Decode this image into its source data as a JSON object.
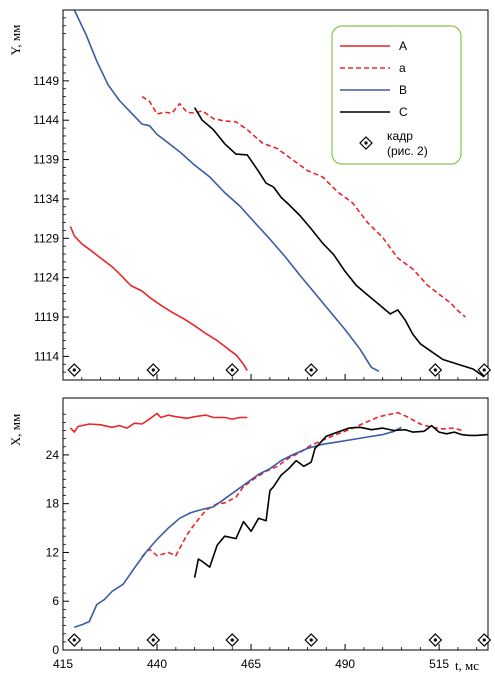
{
  "chart_data": [
    {
      "type": "line",
      "panel": "top",
      "ylabel": "Y, мм",
      "xlim": [
        415,
        528
      ],
      "ylim": [
        1111,
        1158
      ],
      "yticks": [
        1114,
        1119,
        1124,
        1129,
        1134,
        1139,
        1144,
        1149
      ],
      "legend_position": "top-right",
      "legend": [
        {
          "label": "A",
          "color": "#e8262b",
          "dash": "solid"
        },
        {
          "label": "a",
          "color": "#e8262b",
          "dash": "dashed"
        },
        {
          "label": "B",
          "color": "#3b5ba5",
          "dash": "solid"
        },
        {
          "label": "C",
          "color": "#000000",
          "dash": "solid"
        },
        {
          "label": "кадр\n(рис. 2)",
          "marker": "diamond-dot"
        }
      ],
      "series": [
        {
          "name": "A",
          "color": "#e8262b",
          "dash": "solid",
          "points": [
            [
              417,
              1130.5
            ],
            [
              418,
              1129.3
            ],
            [
              420,
              1128.3
            ],
            [
              422,
              1127.6
            ],
            [
              425,
              1126.5
            ],
            [
              428,
              1125.4
            ],
            [
              430,
              1124.5
            ],
            [
              433,
              1123.0
            ],
            [
              436,
              1122.3
            ],
            [
              438,
              1121.5
            ],
            [
              441,
              1120.5
            ],
            [
              444,
              1119.6
            ],
            [
              447,
              1118.8
            ],
            [
              450,
              1117.9
            ],
            [
              453,
              1116.9
            ],
            [
              456,
              1116.0
            ],
            [
              459,
              1114.9
            ],
            [
              461,
              1114.2
            ],
            [
              463,
              1113.0
            ],
            [
              464,
              1112.2
            ]
          ]
        },
        {
          "name": "a",
          "color": "#e8262b",
          "dash": "dashed",
          "points": [
            [
              436,
              1147.0
            ],
            [
              438,
              1146.4
            ],
            [
              440,
              1144.8
            ],
            [
              442,
              1145.0
            ],
            [
              444,
              1144.9
            ],
            [
              446,
              1146.1
            ],
            [
              448,
              1145.0
            ],
            [
              450,
              1144.9
            ],
            [
              452,
              1145.2
            ],
            [
              455,
              1144.2
            ],
            [
              458,
              1143.9
            ],
            [
              461,
              1143.8
            ],
            [
              464,
              1142.8
            ],
            [
              468,
              1141.1
            ],
            [
              472,
              1140.4
            ],
            [
              476,
              1139.0
            ],
            [
              480,
              1137.6
            ],
            [
              484,
              1136.8
            ],
            [
              488,
              1134.9
            ],
            [
              492,
              1133.5
            ],
            [
              496,
              1131.0
            ],
            [
              500,
              1129.1
            ],
            [
              504,
              1126.5
            ],
            [
              508,
              1125.1
            ],
            [
              512,
              1123.0
            ],
            [
              515,
              1121.9
            ],
            [
              518,
              1120.8
            ],
            [
              520,
              1119.8
            ],
            [
              522,
              1119.0
            ]
          ]
        },
        {
          "name": "B",
          "color": "#3b5ba5",
          "dash": "solid",
          "points": [
            [
              418,
              1158.0
            ],
            [
              421,
              1155.0
            ],
            [
              424,
              1151.5
            ],
            [
              427,
              1148.5
            ],
            [
              430,
              1146.5
            ],
            [
              433,
              1145.0
            ],
            [
              436,
              1143.5
            ],
            [
              438,
              1143.3
            ],
            [
              440,
              1142.2
            ],
            [
              443,
              1141.1
            ],
            [
              446,
              1140.0
            ],
            [
              450,
              1138.3
            ],
            [
              454,
              1136.8
            ],
            [
              458,
              1134.8
            ],
            [
              462,
              1133.1
            ],
            [
              466,
              1131.0
            ],
            [
              470,
              1128.9
            ],
            [
              474,
              1126.7
            ],
            [
              478,
              1124.3
            ],
            [
              482,
              1122.0
            ],
            [
              486,
              1119.7
            ],
            [
              490,
              1117.4
            ],
            [
              494,
              1114.9
            ],
            [
              497,
              1112.6
            ],
            [
              499,
              1112.1
            ]
          ]
        },
        {
          "name": "C",
          "color": "#000000",
          "dash": "solid",
          "points": [
            [
              450,
              1145.6
            ],
            [
              452,
              1144.0
            ],
            [
              455,
              1142.8
            ],
            [
              458,
              1141.0
            ],
            [
              461,
              1139.7
            ],
            [
              464,
              1139.6
            ],
            [
              467,
              1137.5
            ],
            [
              469,
              1136.0
            ],
            [
              471,
              1135.5
            ],
            [
              473,
              1134.2
            ],
            [
              475,
              1133.3
            ],
            [
              478,
              1131.9
            ],
            [
              481,
              1130.2
            ],
            [
              484,
              1128.4
            ],
            [
              487,
              1126.9
            ],
            [
              490,
              1124.8
            ],
            [
              493,
              1123.0
            ],
            [
              496,
              1121.8
            ],
            [
              499,
              1120.6
            ],
            [
              502,
              1119.4
            ],
            [
              504,
              1119.9
            ],
            [
              506,
              1118.6
            ],
            [
              508,
              1116.8
            ],
            [
              510,
              1115.6
            ],
            [
              513,
              1114.6
            ],
            [
              516,
              1113.6
            ],
            [
              520,
              1113.0
            ],
            [
              524,
              1112.4
            ],
            [
              527,
              1111.4
            ]
          ]
        }
      ],
      "frame_markers_x": [
        418,
        439,
        460,
        481,
        514,
        527
      ]
    },
    {
      "type": "line",
      "panel": "bottom",
      "xlabel": "t, мс",
      "ylabel": "X, мм",
      "xlim": [
        415,
        528
      ],
      "ylim": [
        0,
        31
      ],
      "xticks": [
        415,
        440,
        465,
        490,
        515
      ],
      "yticks": [
        0,
        6,
        12,
        18,
        24
      ],
      "series": [
        {
          "name": "A",
          "color": "#e8262b",
          "dash": "solid",
          "points": [
            [
              417,
              27.3
            ],
            [
              418,
              26.8
            ],
            [
              419,
              27.5
            ],
            [
              420,
              27.6
            ],
            [
              422,
              27.8
            ],
            [
              425,
              27.7
            ],
            [
              428,
              27.4
            ],
            [
              430,
              27.6
            ],
            [
              432,
              27.3
            ],
            [
              434,
              27.9
            ],
            [
              436,
              27.8
            ],
            [
              438,
              28.4
            ],
            [
              440,
              29.1
            ],
            [
              441,
              28.6
            ],
            [
              443,
              28.9
            ],
            [
              445,
              28.7
            ],
            [
              448,
              28.5
            ],
            [
              450,
              28.7
            ],
            [
              453,
              28.9
            ],
            [
              455,
              28.6
            ],
            [
              458,
              28.6
            ],
            [
              460,
              28.4
            ],
            [
              462,
              28.6
            ],
            [
              464,
              28.6
            ]
          ]
        },
        {
          "name": "a",
          "color": "#e8262b",
          "dash": "dashed",
          "points": [
            [
              436,
              11.5
            ],
            [
              438,
              12.4
            ],
            [
              440,
              11.6
            ],
            [
              443,
              12.0
            ],
            [
              445,
              11.6
            ],
            [
              448,
              14.2
            ],
            [
              450,
              15.5
            ],
            [
              453,
              17.2
            ],
            [
              456,
              18.0
            ],
            [
              458,
              18.1
            ],
            [
              461,
              18.8
            ],
            [
              463,
              20.1
            ],
            [
              466,
              21.1
            ],
            [
              469,
              22.0
            ],
            [
              472,
              22.6
            ],
            [
              475,
              23.6
            ],
            [
              478,
              24.3
            ],
            [
              481,
              25.2
            ],
            [
              484,
              25.8
            ],
            [
              487,
              26.4
            ],
            [
              490,
              26.9
            ],
            [
              493,
              27.5
            ],
            [
              496,
              28.1
            ],
            [
              499,
              28.7
            ],
            [
              502,
              29.0
            ],
            [
              504,
              29.2
            ],
            [
              506,
              28.8
            ],
            [
              508,
              28.3
            ],
            [
              510,
              27.8
            ],
            [
              513,
              27.4
            ],
            [
              516,
              27.2
            ],
            [
              519,
              27.3
            ],
            [
              521,
              27.0
            ]
          ]
        },
        {
          "name": "B",
          "color": "#3b5ba5",
          "dash": "solid",
          "points": [
            [
              418,
              2.8
            ],
            [
              420,
              3.1
            ],
            [
              422,
              3.5
            ],
            [
              424,
              5.6
            ],
            [
              426,
              6.2
            ],
            [
              428,
              7.2
            ],
            [
              431,
              8.1
            ],
            [
              434,
              10.1
            ],
            [
              437,
              12.0
            ],
            [
              440,
              13.6
            ],
            [
              443,
              15.0
            ],
            [
              446,
              16.2
            ],
            [
              449,
              16.9
            ],
            [
              452,
              17.3
            ],
            [
              455,
              17.6
            ],
            [
              458,
              18.6
            ],
            [
              461,
              19.6
            ],
            [
              464,
              20.6
            ],
            [
              467,
              21.6
            ],
            [
              470,
              22.3
            ],
            [
              473,
              23.3
            ],
            [
              476,
              24.0
            ],
            [
              480,
              24.8
            ],
            [
              484,
              25.3
            ],
            [
              488,
              25.6
            ],
            [
              492,
              25.9
            ],
            [
              496,
              26.2
            ],
            [
              500,
              26.5
            ],
            [
              503,
              26.9
            ],
            [
              505,
              27.4
            ]
          ]
        },
        {
          "name": "C",
          "color": "#000000",
          "dash": "solid",
          "points": [
            [
              450,
              8.9
            ],
            [
              451,
              11.2
            ],
            [
              452,
              10.9
            ],
            [
              454,
              10.2
            ],
            [
              456,
              12.9
            ],
            [
              458,
              14.0
            ],
            [
              461,
              13.7
            ],
            [
              463,
              15.8
            ],
            [
              465,
              14.6
            ],
            [
              467,
              16.2
            ],
            [
              469,
              15.9
            ],
            [
              470,
              19.6
            ],
            [
              471,
              20.1
            ],
            [
              473,
              21.5
            ],
            [
              475,
              22.3
            ],
            [
              477,
              23.3
            ],
            [
              479,
              22.6
            ],
            [
              481,
              23.1
            ],
            [
              482,
              24.8
            ],
            [
              485,
              26.3
            ],
            [
              488,
              26.8
            ],
            [
              491,
              27.3
            ],
            [
              494,
              27.4
            ],
            [
              497,
              27.1
            ],
            [
              500,
              27.3
            ],
            [
              503,
              27.0
            ],
            [
              506,
              27.1
            ],
            [
              508,
              26.8
            ],
            [
              511,
              26.9
            ],
            [
              513,
              27.6
            ],
            [
              515,
              26.8
            ],
            [
              517,
              26.6
            ],
            [
              519,
              26.8
            ],
            [
              521,
              26.5
            ],
            [
              523,
              26.4
            ],
            [
              525,
              26.4
            ],
            [
              528,
              26.5
            ]
          ]
        }
      ],
      "frame_markers_x": [
        418,
        439,
        460,
        481,
        514,
        527
      ]
    }
  ]
}
